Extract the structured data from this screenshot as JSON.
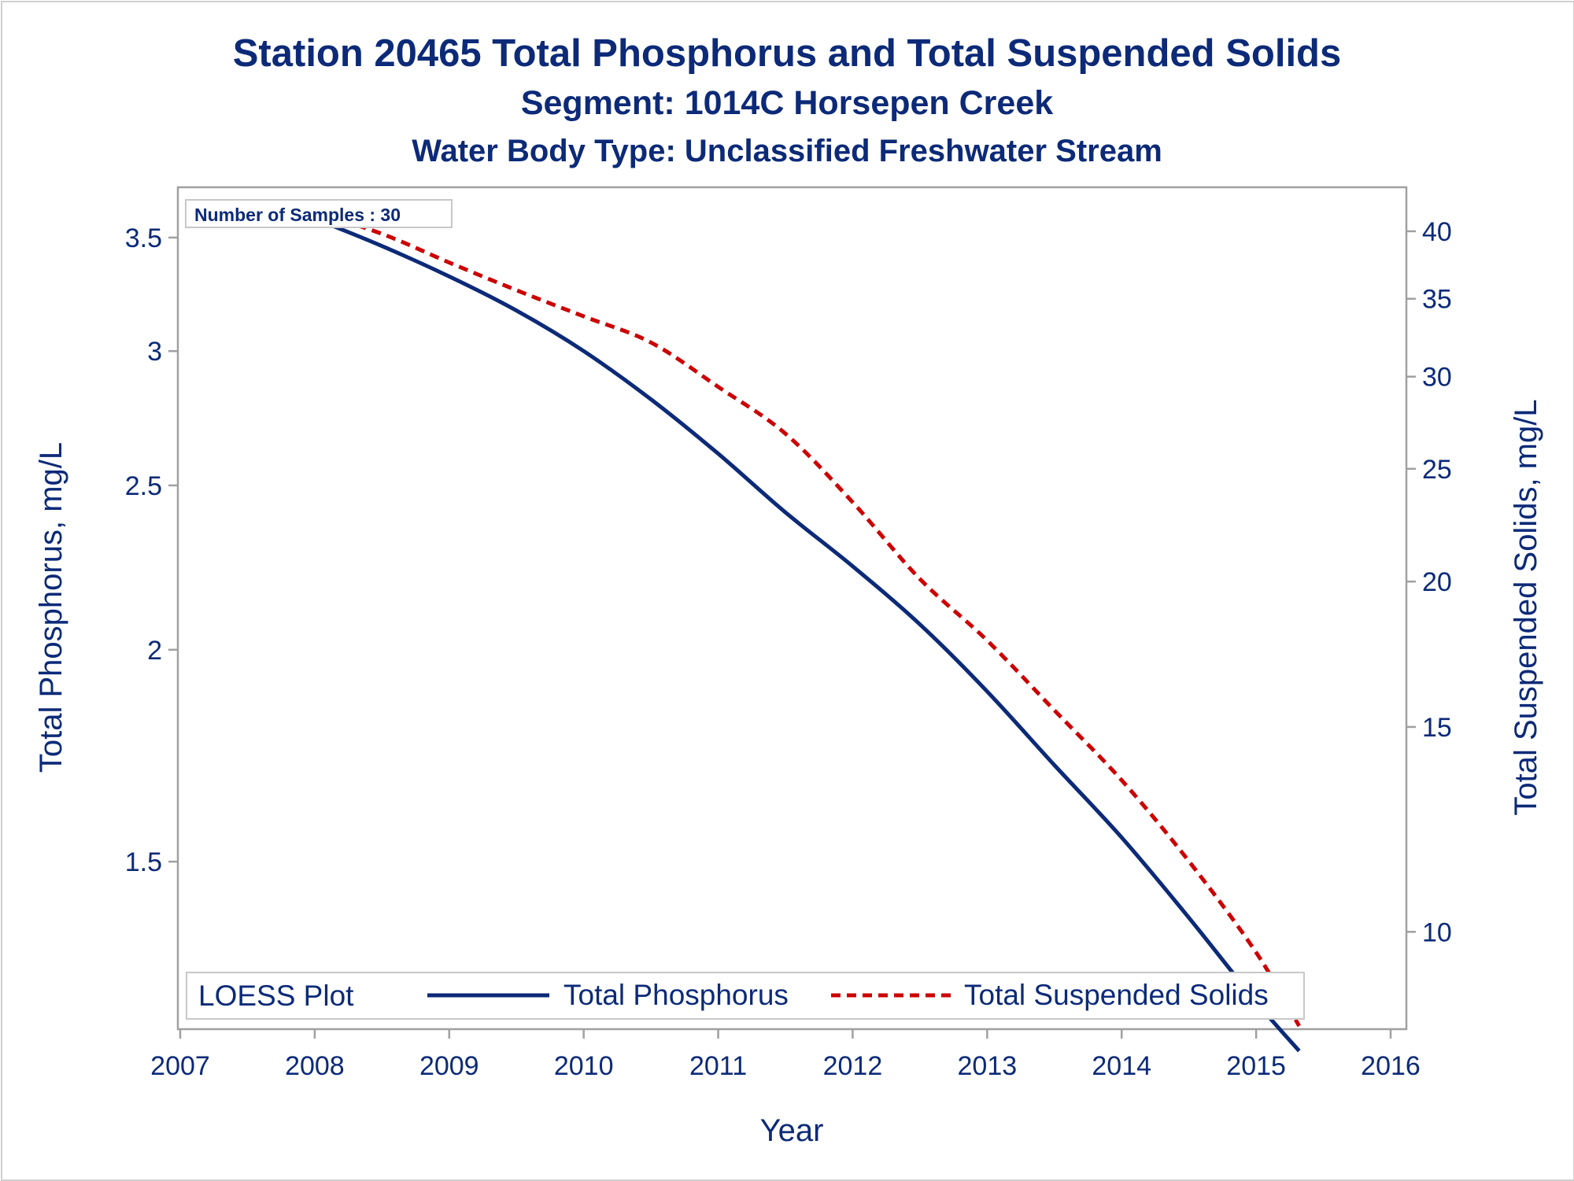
{
  "chart_data": {
    "type": "line",
    "title": "Station 20465  Total Phosphorus and Total Suspended Solids",
    "subtitle": "Segment: 1014C  Horsepen Creek",
    "subtitle2": "Water Body Type: Unclassified Freshwater Stream",
    "xlabel": "Year",
    "ylabel": "Total Phosphorus, mg/L",
    "y2label": "Total Suspended Solids, mg/L",
    "xlim": [
      2007,
      2016
    ],
    "ylim": [
      1.2,
      3.68
    ],
    "y2lim": [
      8.3,
      42.5
    ],
    "y_scale": "log",
    "y2_scale": "log",
    "x_ticks": [
      "2007",
      "2008",
      "2009",
      "2010",
      "2011",
      "2012",
      "2013",
      "2014",
      "2015",
      "2016"
    ],
    "y_ticks": [
      "1.5",
      "2",
      "2.5",
      "3",
      "3.5"
    ],
    "y2_ticks": [
      "10",
      "15",
      "20",
      "25",
      "30",
      "35",
      "40"
    ],
    "inset_label": "Number of Samples : 30",
    "legend": {
      "title": "LOESS Plot",
      "position": "bottom",
      "entries": [
        "Total Phosphorus",
        "Total Suspended Solids"
      ]
    },
    "series": [
      {
        "name": "Total Phosphorus",
        "axis": "left",
        "color": "#0c2a78",
        "style": "solid",
        "x": [
          2007.75,
          2008.0,
          2008.5,
          2009.0,
          2009.5,
          2010.0,
          2010.5,
          2011.0,
          2011.5,
          2012.0,
          2012.5,
          2013.0,
          2013.5,
          2014.0,
          2014.5,
          2015.0,
          2015.32
        ],
        "y": [
          3.65,
          3.59,
          3.46,
          3.32,
          3.17,
          3.0,
          2.81,
          2.61,
          2.41,
          2.24,
          2.07,
          1.89,
          1.71,
          1.55,
          1.39,
          1.24,
          1.16
        ]
      },
      {
        "name": "Total Suspended Solids",
        "axis": "right",
        "color": "#cc0000",
        "style": "dashed",
        "x": [
          2007.75,
          2008.0,
          2008.5,
          2009.0,
          2009.5,
          2010.0,
          2010.5,
          2011.0,
          2011.5,
          2012.0,
          2012.5,
          2013.0,
          2013.5,
          2014.0,
          2014.5,
          2015.0,
          2015.32
        ],
        "y": [
          42.2,
          41.5,
          39.8,
          37.6,
          35.6,
          33.8,
          32.1,
          29.4,
          26.8,
          23.4,
          20.1,
          17.8,
          15.5,
          13.5,
          11.5,
          9.6,
          8.3
        ]
      }
    ]
  }
}
